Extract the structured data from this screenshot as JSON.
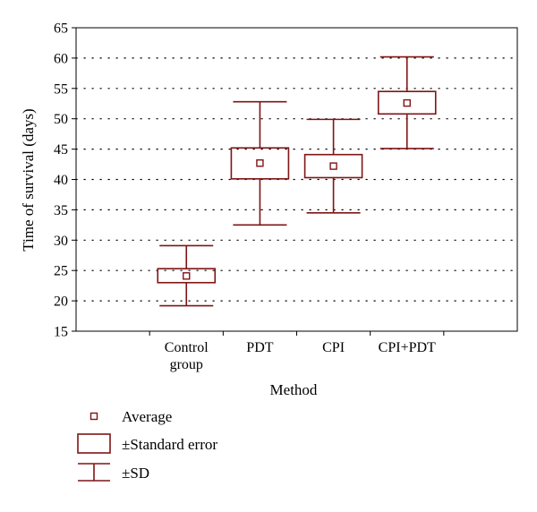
{
  "chart_data": {
    "type": "box",
    "title": "",
    "xlabel": "Method",
    "ylabel": "Time of survival (days)",
    "ylim": [
      15,
      65
    ],
    "yticks": [
      15,
      20,
      25,
      30,
      35,
      40,
      45,
      50,
      55,
      60,
      65
    ],
    "grid": "horizontal-dotted",
    "categories": [
      {
        "label_lines": [
          "Control",
          "group"
        ],
        "mean": 24.1,
        "se_low": 23.0,
        "se_high": 25.3,
        "sd_low": 19.2,
        "sd_high": 29.1
      },
      {
        "label_lines": [
          "PDT"
        ],
        "mean": 42.7,
        "se_low": 40.1,
        "se_high": 45.2,
        "sd_low": 32.5,
        "sd_high": 52.8
      },
      {
        "label_lines": [
          "CPI"
        ],
        "mean": 42.2,
        "se_low": 40.3,
        "se_high": 44.1,
        "sd_low": 34.5,
        "sd_high": 49.9
      },
      {
        "label_lines": [
          "CPI+PDT"
        ],
        "mean": 52.6,
        "se_low": 50.8,
        "se_high": 54.5,
        "sd_low": 45.1,
        "sd_high": 60.2
      }
    ],
    "legend": {
      "placement": "bottom-left",
      "entries": [
        {
          "symbol": "mean-square",
          "label": "Average"
        },
        {
          "symbol": "box",
          "label": "±Standard error"
        },
        {
          "symbol": "whisker",
          "label": "±SD"
        }
      ]
    },
    "color": "#7f1416"
  }
}
